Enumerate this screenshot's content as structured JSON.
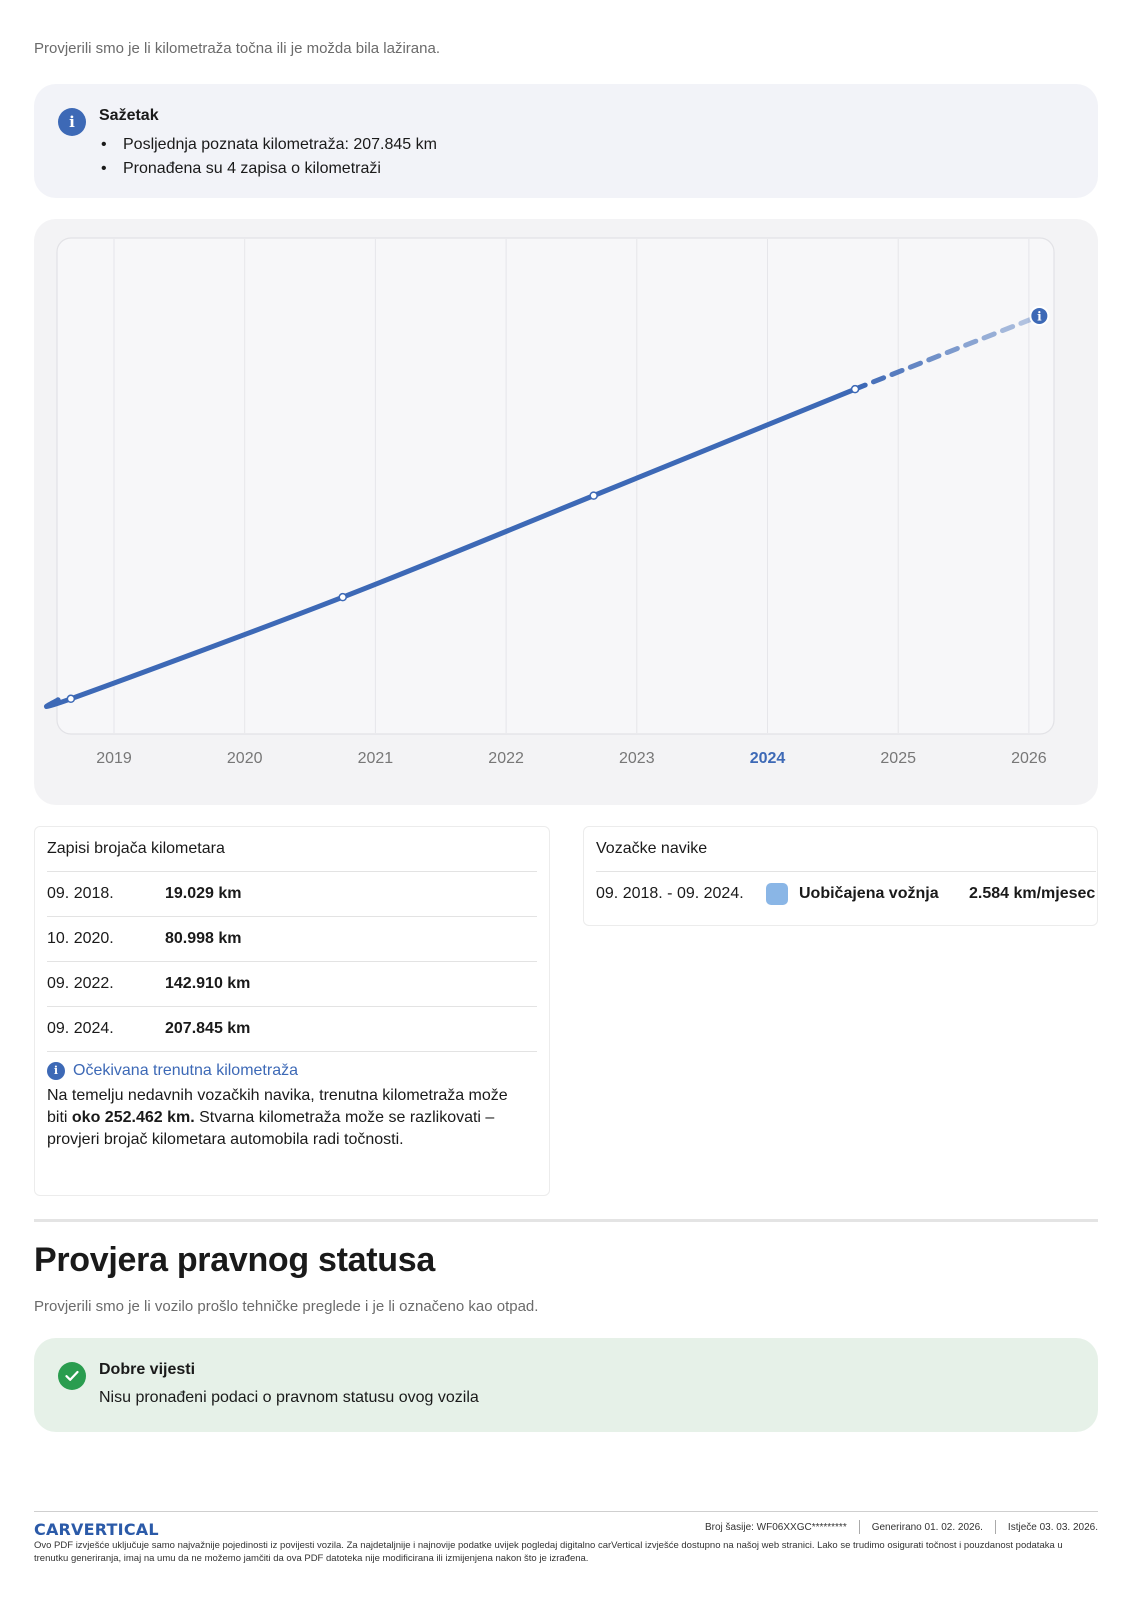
{
  "intro_text": "Provjerili smo je li kilometraža točna ili je možda bila lažirana.",
  "summary": {
    "icon": "info-icon",
    "title": "Sažetak",
    "items": [
      "Posljednja poznata kilometraža: 207.845 km",
      "Pronađena su 4 zapisa o kilometraži"
    ]
  },
  "chart_data": {
    "type": "line",
    "title": "",
    "xlabel": "",
    "ylabel": "",
    "x_ticks": [
      "2019",
      "2020",
      "2021",
      "2022",
      "2023",
      "2024",
      "2025",
      "2026"
    ],
    "highlighted_tick": "2024",
    "xlim": [
      2018.55,
      2026.2
    ],
    "ylim": [
      0,
      300000
    ],
    "series": [
      {
        "style": "solid",
        "color": "#3d69b6",
        "points": [
          {
            "x": 2018.67,
            "y": 19029
          },
          {
            "x": 2020.75,
            "y": 80998
          },
          {
            "x": 2022.67,
            "y": 142910
          },
          {
            "x": 2024.67,
            "y": 207845
          }
        ]
      },
      {
        "style": "dashed-projection",
        "color": "#3d69b6",
        "points": [
          {
            "x": 2024.67,
            "y": 207845
          },
          {
            "x": 2026.08,
            "y": 252462
          }
        ]
      }
    ],
    "grid": true,
    "projection_marker_icon": "info-icon"
  },
  "records": {
    "title": "Zapisi brojača kilometara",
    "rows": [
      {
        "date": "09. 2018.",
        "km": "19.029 km"
      },
      {
        "date": "10. 2020.",
        "km": "80.998 km"
      },
      {
        "date": "09. 2022.",
        "km": "142.910 km"
      },
      {
        "date": "09. 2024.",
        "km": "207.845 km"
      }
    ],
    "expected": {
      "icon": "info-icon",
      "title": "Očekivana trenutna kilometraža",
      "text_before": "Na temelju nedavnih vozačkih navika, trenutna kilometraža može biti ",
      "text_bold": "oko 252.462 km.",
      "text_after": " Stvarna kilometraža može se razlikovati – provjeri brojač kilometara automobila radi točnosti."
    }
  },
  "habits": {
    "title": "Vozačke navike",
    "period": "09. 2018. - 09. 2024.",
    "swatch_color": "#8ab6e6",
    "label": "Uobičajena vožnja",
    "rate": "2.584 km/mjesec"
  },
  "legal": {
    "title": "Provjera pravnog statusa",
    "subtitle": "Provjerili smo je li vozilo prošlo tehničke preglede i je li označeno kao otpad.",
    "result_icon": "check-icon",
    "result_title": "Dobre vijesti",
    "result_text": "Nisu pronađeni podaci o pravnom statusu ovog vozila"
  },
  "footer": {
    "logo": "CARVERTICAL",
    "vin": "Broj šasije:  WF06XXGC*********",
    "generated": "Generirano  01. 02. 2026.",
    "expires": "Istječe  03. 03. 2026.",
    "disclaimer": "Ovo PDF izvješće uključuje samo najvažnije pojedinosti iz povijesti vozila. Za najdetaljnije i najnovije podatke uvijek pogledaj digitalno carVertical izvješće dostupno na našoj web stranici. Lako se trudimo osigurati točnost i pouzdanost podataka u trenutku generiranja, imaj na umu da ne možemo jamčiti da ova PDF datoteka nije modificirana ili izmijenjena nakon što je izrađena."
  }
}
